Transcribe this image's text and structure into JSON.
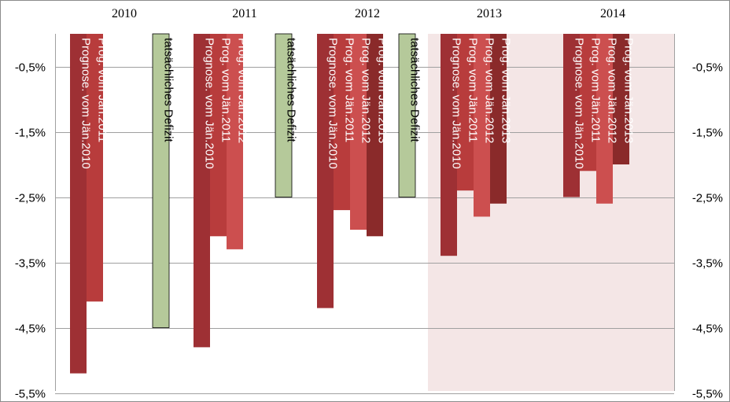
{
  "chart_data": {
    "type": "bar",
    "categories": [
      "2010",
      "2011",
      "2012",
      "2013",
      "2014"
    ],
    "y_ticks": [
      "-0,5%",
      "-1,5%",
      "-2,5%",
      "-3,5%",
      "-4,5%",
      "-5,5%"
    ],
    "ylim": [
      -5.5,
      0
    ],
    "grid": true,
    "forecast_shading_from": "2013",
    "bars": [
      {
        "category": "2010",
        "label": "Prognose. vom Jän.2010",
        "value": -5.2,
        "color": "#9e3034",
        "label_color": "#ffffff"
      },
      {
        "category": "2010",
        "label": "Prog. vom Jän.2011",
        "value": -4.1,
        "color": "#b83c3c",
        "label_color": "#ffffff"
      },
      {
        "category": "2010",
        "label": "tatsächliches Defizit",
        "value": -4.5,
        "color": "#b5c99a",
        "label_color": "#000000"
      },
      {
        "category": "2011",
        "label": "Prognose. vom Jän.2010",
        "value": -4.8,
        "color": "#9e3034",
        "label_color": "#ffffff"
      },
      {
        "category": "2011",
        "label": "Prog. vom Jän.2011",
        "value": -3.1,
        "color": "#b83c3c",
        "label_color": "#ffffff"
      },
      {
        "category": "2011",
        "label": "Prog. vom Jän.2012",
        "value": -3.3,
        "color": "#cc4f4f",
        "label_color": "#ffffff"
      },
      {
        "category": "2011",
        "label": "tatsächliches Defizit",
        "value": -2.5,
        "color": "#b5c99a",
        "label_color": "#000000"
      },
      {
        "category": "2012",
        "label": "Prognose. vom Jän.2010",
        "value": -4.2,
        "color": "#9e3034",
        "label_color": "#ffffff"
      },
      {
        "category": "2012",
        "label": "Prog. vom Jän.2011",
        "value": -2.7,
        "color": "#b83c3c",
        "label_color": "#ffffff"
      },
      {
        "category": "2012",
        "label": "Prog. vom Jän.2012",
        "value": -3.0,
        "color": "#cc4f4f",
        "label_color": "#ffffff"
      },
      {
        "category": "2012",
        "label": "Prog. vom Jän.2013",
        "value": -3.1,
        "color": "#8a2a2a",
        "label_color": "#ffffff"
      },
      {
        "category": "2012",
        "label": "tatsächliches Defizit",
        "value": -2.5,
        "color": "#b5c99a",
        "label_color": "#000000"
      },
      {
        "category": "2013",
        "label": "Prognose. vom Jän.2010",
        "value": -3.4,
        "color": "#9e3034",
        "label_color": "#ffffff"
      },
      {
        "category": "2013",
        "label": "Prog. vom Jän.2011",
        "value": -2.4,
        "color": "#b83c3c",
        "label_color": "#ffffff"
      },
      {
        "category": "2013",
        "label": "Prog. vom Jän.2012",
        "value": -2.8,
        "color": "#cc4f4f",
        "label_color": "#ffffff"
      },
      {
        "category": "2013",
        "label": "Prog. vom Jän.2013",
        "value": -2.6,
        "color": "#8a2a2a",
        "label_color": "#ffffff"
      },
      {
        "category": "2014",
        "label": "Prognose. vom Jän.2010",
        "value": -2.5,
        "color": "#9e3034",
        "label_color": "#ffffff"
      },
      {
        "category": "2014",
        "label": "Prog. vom Jän.2011",
        "value": -2.1,
        "color": "#b83c3c",
        "label_color": "#ffffff"
      },
      {
        "category": "2014",
        "label": "Prog. vom Jän.2012",
        "value": -2.6,
        "color": "#cc4f4f",
        "label_color": "#ffffff"
      },
      {
        "category": "2014",
        "label": "Prog. vom Jän.2013",
        "value": -2.0,
        "color": "#8a2a2a",
        "label_color": "#ffffff"
      }
    ],
    "colors": {
      "forecast_background": "#f4e6e6",
      "grid": "#a0a0a0",
      "frame": "#8c8c8c"
    }
  }
}
